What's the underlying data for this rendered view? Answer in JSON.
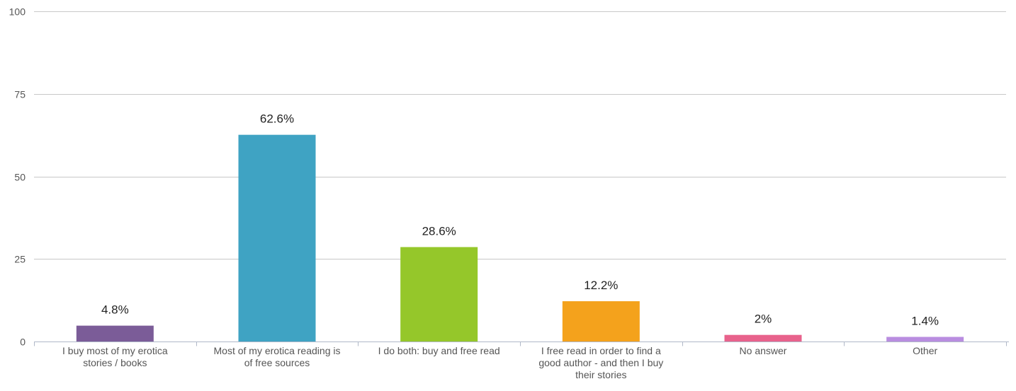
{
  "chart_data": {
    "type": "bar",
    "categories": [
      "I buy most of my erotica stories / books",
      "Most of my erotica reading is of free sources",
      "I do both: buy and free read",
      "I free read in order to find a good author - and then I buy their stories",
      "No answer",
      "Other"
    ],
    "values": [
      4.8,
      62.6,
      28.6,
      12.2,
      2,
      1.4
    ],
    "data_labels": [
      "4.8%",
      "62.6%",
      "28.6%",
      "12.2%",
      "2%",
      "1.4%"
    ],
    "colors": [
      "#7b5c98",
      "#3fa3c3",
      "#95c72a",
      "#f4a21c",
      "#e8628c",
      "#b98de0"
    ],
    "ylim": [
      0,
      100
    ],
    "y_ticks": [
      0,
      25,
      50,
      75,
      100
    ],
    "grid": true,
    "legend": "none",
    "title": "",
    "xlabel": "",
    "ylabel": ""
  }
}
